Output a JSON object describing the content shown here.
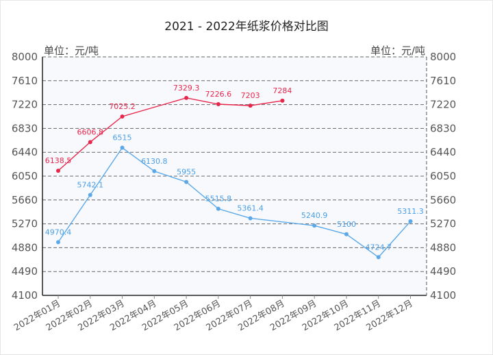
{
  "title": "2021 - 2022年纸浆价格对比图",
  "unit_left": "单位：元/吨",
  "unit_right": "单位：元/吨",
  "colors": {
    "series_2021": "#e8264a",
    "series_2022": "#5aa8e8",
    "plot_bg": "#f7f9fd",
    "grid": "#777777"
  },
  "chart_data": {
    "type": "line",
    "title": "2021 - 2022年纸浆价格对比图",
    "xlabel": "",
    "ylabel": "单位：元/吨",
    "ylim": [
      4100,
      8000
    ],
    "yticks": [
      8000,
      7610,
      7220,
      6830,
      6440,
      6050,
      5660,
      5270,
      4880,
      4490,
      4100
    ],
    "grid": true,
    "legend": "none",
    "categories": [
      "2022年01月",
      "2022年02月",
      "2022年03月",
      "2022年04月",
      "2022年05月",
      "2022年06月",
      "2022年07月",
      "2022年08月",
      "2022年09月",
      "2022年10月",
      "2022年11月",
      "2022年12月"
    ],
    "series": [
      {
        "name": "2021",
        "color": "#e8264a",
        "values": [
          6138.5,
          6606.8,
          7025.2,
          null,
          7329.3,
          7226.6,
          7203,
          7284,
          null,
          null,
          null,
          null
        ],
        "point_indices": [
          0,
          1,
          2,
          4,
          5,
          6,
          7
        ]
      },
      {
        "name": "2022",
        "color": "#5aa8e8",
        "values": [
          4970.4,
          5742.1,
          6515,
          6130.8,
          5955,
          5515.8,
          5361.4,
          null,
          5240.9,
          5100,
          4724.7,
          5311.3
        ],
        "point_indices": [
          0,
          1,
          2,
          3,
          4,
          5,
          6,
          8,
          9,
          10,
          11
        ]
      }
    ]
  }
}
